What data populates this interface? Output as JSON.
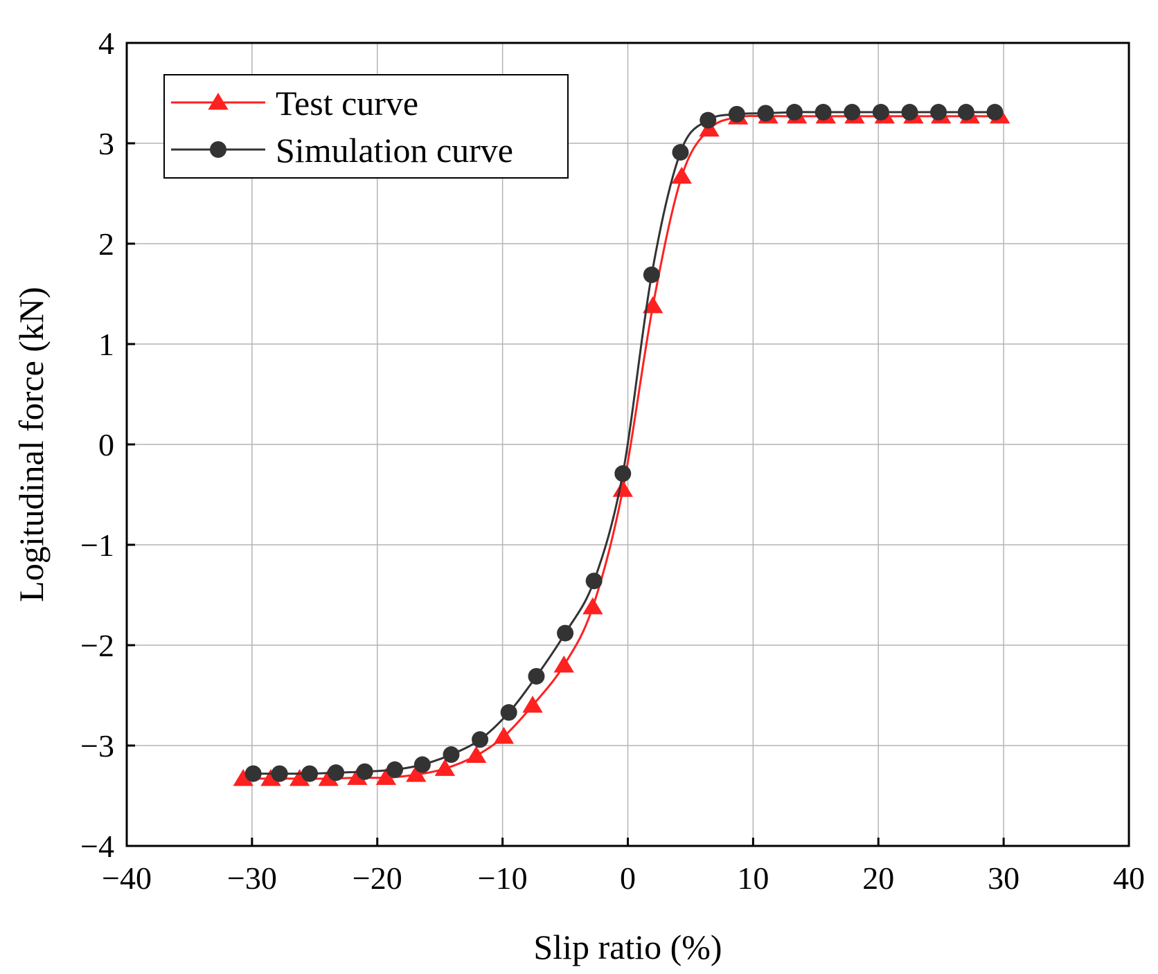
{
  "chart_data": {
    "type": "line",
    "title": "",
    "xlabel": "Slip ratio (%)",
    "ylabel": "Logitudinal force (kN)",
    "xlim": [
      -40,
      40
    ],
    "ylim": [
      -4,
      4
    ],
    "xticks": [
      -40,
      -30,
      -20,
      -10,
      0,
      10,
      20,
      30,
      40
    ],
    "yticks": [
      -4,
      -3,
      -2,
      -1,
      0,
      1,
      2,
      3,
      4
    ],
    "xtick_labels": [
      "−40",
      "−30",
      "−20",
      "−10",
      "0",
      "10",
      "20",
      "30",
      "40"
    ],
    "ytick_labels": [
      "−4",
      "−3",
      "−2",
      "−1",
      "0",
      "1",
      "2",
      "3",
      "4"
    ],
    "grid": true,
    "legend_position": "top-left",
    "series": [
      {
        "name": "Test curve",
        "color": "#ff2020",
        "marker": "triangle",
        "x": [
          -30.7,
          -28.5,
          -26.2,
          -23.9,
          -21.6,
          -19.3,
          -16.9,
          -14.6,
          -12.1,
          -9.9,
          -7.6,
          -5.1,
          -2.8,
          -0.4,
          2.0,
          4.3,
          6.5,
          8.8,
          11.2,
          13.5,
          15.8,
          18.1,
          20.5,
          22.8,
          25.0,
          27.3,
          29.7
        ],
        "y": [
          -3.33,
          -3.33,
          -3.33,
          -3.33,
          -3.32,
          -3.32,
          -3.29,
          -3.23,
          -3.1,
          -2.91,
          -2.6,
          -2.2,
          -1.62,
          -0.45,
          1.38,
          2.67,
          3.14,
          3.26,
          3.27,
          3.27,
          3.27,
          3.27,
          3.27,
          3.27,
          3.27,
          3.27,
          3.27
        ]
      },
      {
        "name": "Simulation curve",
        "color": "#333333",
        "marker": "circle",
        "x": [
          -29.9,
          -27.8,
          -25.4,
          -23.3,
          -21.0,
          -18.6,
          -16.4,
          -14.1,
          -11.8,
          -9.5,
          -7.3,
          -5.0,
          -2.7,
          -0.4,
          1.9,
          4.2,
          6.4,
          8.7,
          11.0,
          13.3,
          15.6,
          17.9,
          20.2,
          22.5,
          24.8,
          27.0,
          29.3
        ],
        "y": [
          -3.28,
          -3.28,
          -3.28,
          -3.27,
          -3.26,
          -3.24,
          -3.19,
          -3.09,
          -2.94,
          -2.67,
          -2.31,
          -1.88,
          -1.36,
          -0.29,
          1.69,
          2.91,
          3.23,
          3.29,
          3.3,
          3.31,
          3.31,
          3.31,
          3.31,
          3.31,
          3.31,
          3.31,
          3.31
        ]
      }
    ]
  }
}
